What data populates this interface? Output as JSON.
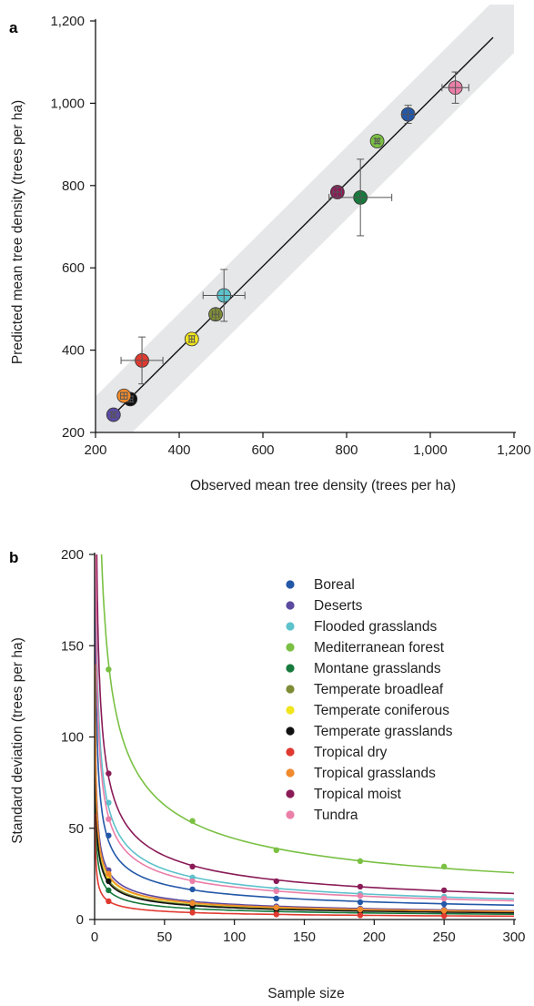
{
  "panels": {
    "a": {
      "letter": "a"
    },
    "b": {
      "letter": "b"
    }
  },
  "chart_data": [
    {
      "type": "scatter",
      "panel": "a",
      "xlabel": "Observed mean tree density (trees per ha)",
      "ylabel": "Predicted mean tree density (trees per ha)",
      "xlim": [
        200,
        1200
      ],
      "ylim": [
        200,
        1200
      ],
      "x_ticks": [
        200,
        400,
        600,
        800,
        1000,
        1200
      ],
      "x_tick_labels": [
        "200",
        "400",
        "600",
        "800",
        "1,000",
        "1,200"
      ],
      "y_ticks": [
        200,
        400,
        600,
        800,
        1000,
        1200
      ],
      "y_tick_labels": [
        "200",
        "400",
        "600",
        "800",
        "1,000",
        "1,200"
      ],
      "fit_line": {
        "from": [
          240,
          240
        ],
        "to": [
          1150,
          1160
        ]
      },
      "confidence_band_halfwidth": 88,
      "points": [
        {
          "series": "Boreal",
          "x": 947,
          "y": 973,
          "xerr": 15,
          "yerr": 22,
          "color": "#2357a8"
        },
        {
          "series": "Deserts",
          "x": 243,
          "y": 243,
          "xerr": 5,
          "yerr": 6,
          "color": "#5b4aa0"
        },
        {
          "series": "Flooded grasslands",
          "x": 507,
          "y": 533,
          "xerr": 50,
          "yerr": 63,
          "color": "#5cc2cc"
        },
        {
          "series": "Mediterranean forest",
          "x": 873,
          "y": 908,
          "xerr": 5,
          "yerr": 6,
          "color": "#7ac043"
        },
        {
          "series": "Montane grasslands",
          "x": 833,
          "y": 771,
          "xerr": 75,
          "yerr": 93,
          "color": "#177a3c"
        },
        {
          "series": "Temperate broadleaf",
          "x": 487,
          "y": 487,
          "xerr": 8,
          "yerr": 15,
          "color": "#7f8c36"
        },
        {
          "series": "Temperate coniferous",
          "x": 430,
          "y": 427,
          "xerr": 6,
          "yerr": 8,
          "color": "#f0e51c"
        },
        {
          "series": "Temperate grasslands",
          "x": 283,
          "y": 281,
          "xerr": 6,
          "yerr": 7,
          "color": "#111111"
        },
        {
          "series": "Tropical dry",
          "x": 311,
          "y": 375,
          "xerr": 50,
          "yerr": 57,
          "color": "#e03a30"
        },
        {
          "series": "Tropical grasslands",
          "x": 268,
          "y": 289,
          "xerr": 8,
          "yerr": 8,
          "color": "#f08a2c"
        },
        {
          "series": "Tropical moist",
          "x": 778,
          "y": 784,
          "xerr": 10,
          "yerr": 12,
          "color": "#8a1b57"
        },
        {
          "series": "Tundra",
          "x": 1060,
          "y": 1038,
          "xerr": 32,
          "yerr": 38,
          "color": "#ea7fa8"
        }
      ]
    },
    {
      "type": "line",
      "panel": "b",
      "xlabel": "Sample size",
      "ylabel": "Standard deviation (trees per ha)",
      "xlim": [
        0,
        300
      ],
      "ylim": [
        0,
        200
      ],
      "x_ticks": [
        0,
        50,
        100,
        150,
        200,
        250,
        300
      ],
      "x_tick_labels": [
        "0",
        "50",
        "100",
        "150",
        "200",
        "250",
        "300"
      ],
      "y_ticks": [
        0,
        50,
        100,
        150,
        200
      ],
      "y_tick_labels": [
        "0",
        "50",
        "100",
        "150",
        "200"
      ],
      "x_points": [
        10,
        70,
        130,
        190,
        250
      ],
      "legend_position": "top-right",
      "series": [
        {
          "name": "Boreal",
          "color": "#2357a8",
          "values": [
            46,
            16.5,
            11.5,
            9.5,
            8.5
          ]
        },
        {
          "name": "Deserts",
          "color": "#5b4aa0",
          "values": [
            27,
            9.5,
            7.2,
            6.0,
            5.4
          ]
        },
        {
          "name": "Flooded grasslands",
          "color": "#5cc2cc",
          "values": [
            64,
            23,
            16.5,
            14,
            12.5
          ]
        },
        {
          "name": "Mediterranean forest",
          "color": "#7ac043",
          "values": [
            137,
            54,
            38,
            32,
            29
          ]
        },
        {
          "name": "Montane grasslands",
          "color": "#177a3c",
          "values": [
            16,
            6.0,
            4.3,
            3.6,
            3.2
          ]
        },
        {
          "name": "Temperate broadleaf",
          "color": "#7f8c36",
          "values": [
            22,
            8.0,
            5.8,
            4.9,
            4.3
          ]
        },
        {
          "name": "Temperate coniferous",
          "color": "#f0e51c",
          "values": [
            24,
            8.8,
            6.4,
            5.4,
            4.8
          ]
        },
        {
          "name": "Temperate grasslands",
          "color": "#111111",
          "values": [
            21,
            7.5,
            5.5,
            4.6,
            4.1
          ]
        },
        {
          "name": "Tropical dry",
          "color": "#e03a30",
          "values": [
            10,
            3.8,
            2.8,
            2.3,
            2.0
          ]
        },
        {
          "name": "Tropical grasslands",
          "color": "#f08a2c",
          "values": [
            25,
            9.0,
            6.6,
            5.5,
            4.9
          ]
        },
        {
          "name": "Tropical moist",
          "color": "#8a1b57",
          "values": [
            80,
            29,
            21,
            18,
            16
          ]
        },
        {
          "name": "Tundra",
          "color": "#ea7fa8",
          "values": [
            55,
            21,
            15.5,
            13,
            11.5
          ]
        }
      ]
    }
  ]
}
